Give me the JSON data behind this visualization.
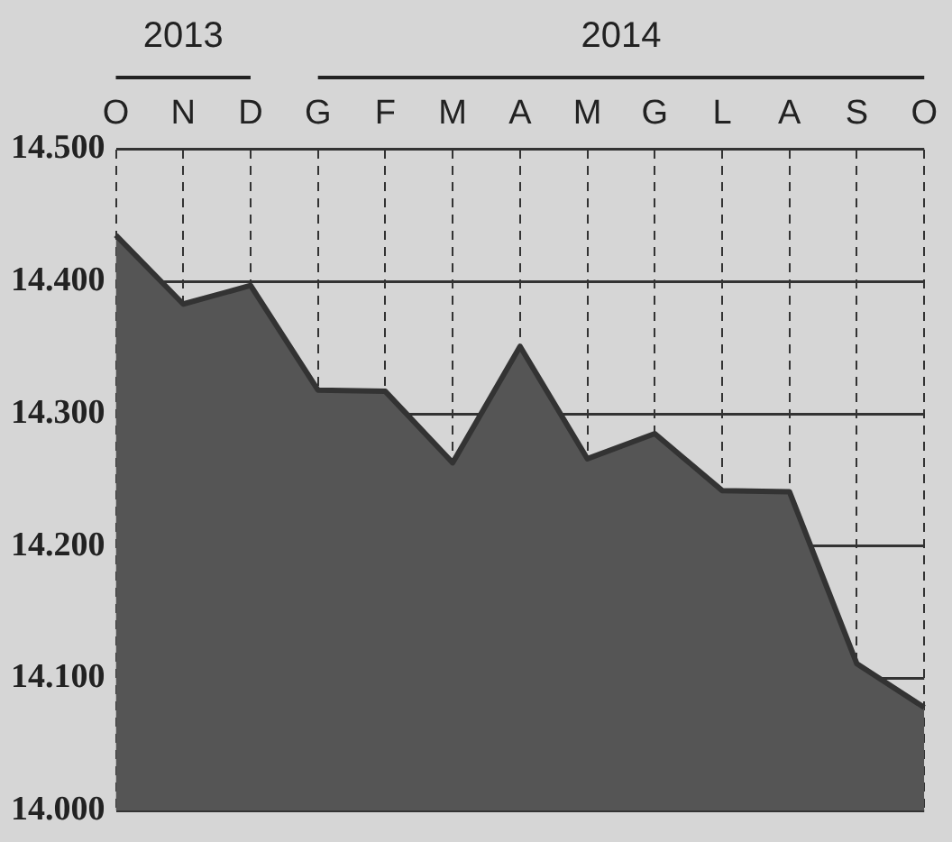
{
  "chart_data": {
    "type": "area",
    "categories": [
      "O",
      "N",
      "D",
      "G",
      "F",
      "M",
      "A",
      "M",
      "G",
      "L",
      "A",
      "S",
      "O"
    ],
    "series": [
      {
        "color": "#555555",
        "values": [
          14435,
          14383,
          14397,
          14318,
          14317,
          14263,
          14351,
          14266,
          14285,
          14242,
          14241,
          14111,
          14078
        ]
      }
    ],
    "ylim": [
      14000,
      14500
    ],
    "yticks": [
      {
        "value": 14000,
        "label": "14.000"
      },
      {
        "value": 14100,
        "label": "14.100"
      },
      {
        "value": 14200,
        "label": "14.200"
      },
      {
        "value": 14300,
        "label": "14.300"
      },
      {
        "value": 14400,
        "label": "14.400"
      },
      {
        "value": 14500,
        "label": "14.500"
      }
    ],
    "grid": true,
    "legend": false,
    "annotations": [
      "2013",
      "2014"
    ]
  }
}
